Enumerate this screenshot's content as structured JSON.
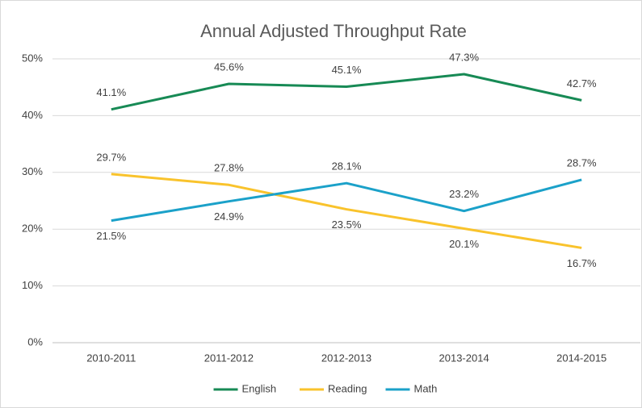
{
  "chart_data": {
    "type": "line",
    "title": "Annual Adjusted Throughput Rate",
    "categories": [
      "2010-2011",
      "2011-2012",
      "2012-2013",
      "2013-2014",
      "2014-2015"
    ],
    "series": [
      {
        "name": "English",
        "color": "#178a55",
        "values": [
          41.1,
          45.6,
          45.1,
          47.3,
          42.7
        ],
        "value_labels": [
          "41.1%",
          "45.6%",
          "45.1%",
          "47.3%",
          "42.7%"
        ]
      },
      {
        "name": "Reading",
        "color": "#f9c32c",
        "values": [
          29.7,
          27.8,
          23.5,
          20.1,
          16.7
        ],
        "value_labels": [
          "29.7%",
          "27.8%",
          "23.5%",
          "20.1%",
          "16.7%"
        ]
      },
      {
        "name": "Math",
        "color": "#1ba1c9",
        "values": [
          21.5,
          24.9,
          28.1,
          23.2,
          28.7
        ],
        "value_labels": [
          "21.5%",
          "24.9%",
          "28.1%",
          "23.2%",
          "28.7%"
        ]
      }
    ],
    "ylim": [
      0,
      50
    ],
    "yticks": [
      {
        "value": 0,
        "label": "0%"
      },
      {
        "value": 10,
        "label": "10%"
      },
      {
        "value": 20,
        "label": "20%"
      },
      {
        "value": 30,
        "label": "30%"
      },
      {
        "value": 40,
        "label": "40%"
      },
      {
        "value": 50,
        "label": "50%"
      }
    ],
    "grid": true,
    "legend": "bottom"
  }
}
